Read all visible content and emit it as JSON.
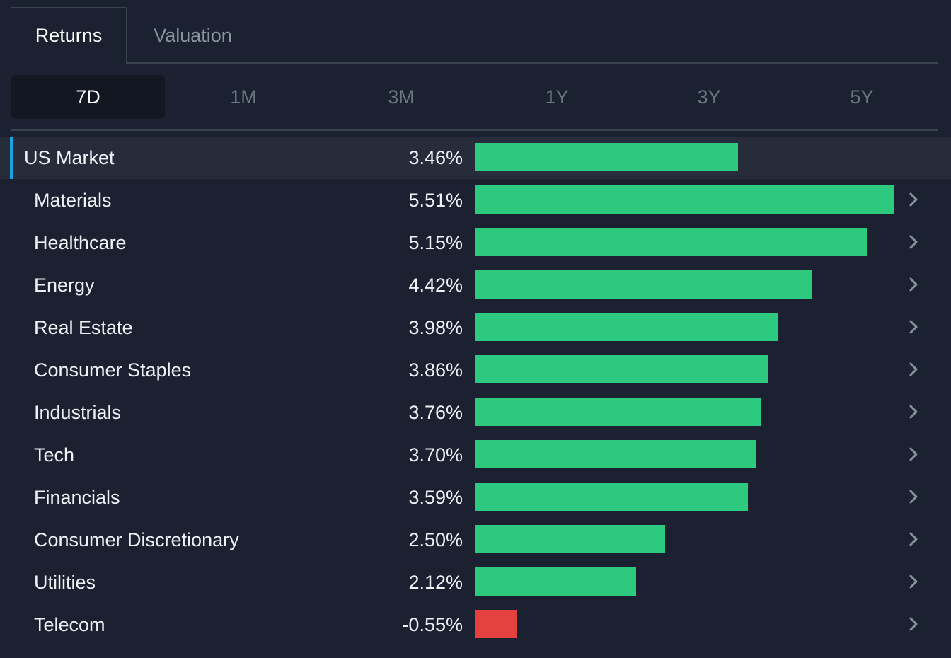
{
  "tabs": {
    "returns": "Returns",
    "valuation": "Valuation"
  },
  "periods": [
    "7D",
    "1M",
    "3M",
    "1Y",
    "3Y",
    "5Y"
  ],
  "active_period": "7D",
  "colors": {
    "positive": "#2dc97e",
    "negative": "#e5413f",
    "accent": "#1aa3e0"
  },
  "chart_data": {
    "type": "bar",
    "categories": [
      "US Market",
      "Materials",
      "Healthcare",
      "Energy",
      "Real Estate",
      "Consumer Staples",
      "Industrials",
      "Tech",
      "Financials",
      "Consumer Discretionary",
      "Utilities",
      "Telecom"
    ],
    "values": [
      3.46,
      5.51,
      5.15,
      4.42,
      3.98,
      3.86,
      3.76,
      3.7,
      3.59,
      2.5,
      2.12,
      -0.55
    ],
    "labels": [
      "3.46%",
      "5.51%",
      "5.15%",
      "4.42%",
      "3.98%",
      "3.86%",
      "3.76%",
      "3.70%",
      "3.59%",
      "2.50%",
      "2.12%",
      "-0.55%"
    ]
  },
  "rows_icon": "chevron-right-icon"
}
